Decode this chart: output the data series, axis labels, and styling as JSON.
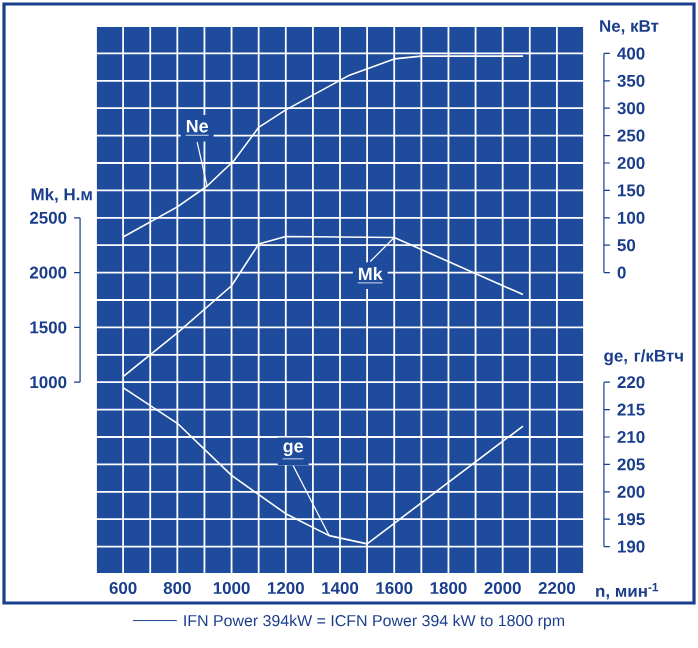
{
  "chart_data": {
    "type": "line",
    "xlabel": "n, мин$^{-1}$",
    "ylabel": "Mk, Н.м",
    "y2label": "Ne, кВт",
    "y3label": "ge, г/кВтч",
    "annotations": [
      "IFN Power 394kW = ICFN Power 394 kW to 1800 rpm"
    ],
    "xlim": [
      500,
      2300
    ],
    "xticks": [
      600,
      800,
      1000,
      1200,
      1400,
      1600,
      1800,
      2000,
      2200
    ],
    "ylim": [
      -750,
      4250
    ],
    "yticks": [
      1000,
      1500,
      2000,
      2500
    ],
    "y2lim": [
      -550,
      450
    ],
    "y2ticks": [
      0,
      50,
      100,
      150,
      200,
      250,
      300,
      350,
      400
    ],
    "y3lim": [
      185,
      285
    ],
    "y3ticks": [
      190,
      195,
      200,
      205,
      210,
      215,
      220
    ],
    "grid": true,
    "marker": "none",
    "line_style": "solid",
    "series": [
      {
        "name": "Mk",
        "color": "#ffffff",
        "x": [
          600,
          800,
          1000,
          1100,
          1200,
          1600,
          2075
        ],
        "values": [
          1050,
          1450,
          1880,
          2260,
          2330,
          2320,
          1800
        ]
      },
      {
        "name": "Ne",
        "color": "#ffffff",
        "axis": "y2",
        "x": [
          600,
          800,
          910,
          1010,
          1100,
          1200,
          1430,
          1600,
          1700,
          2075
        ],
        "values": [
          65,
          120,
          158,
          205,
          265,
          297,
          359,
          390,
          395,
          395
        ]
      },
      {
        "name": "ge",
        "color": "#ffffff",
        "axis": "y3",
        "x": [
          600,
          800,
          1000,
          1200,
          1360,
          1500,
          2075
        ],
        "values": [
          219,
          212.5,
          203,
          196,
          192,
          190.5,
          212
        ]
      }
    ]
  }
}
